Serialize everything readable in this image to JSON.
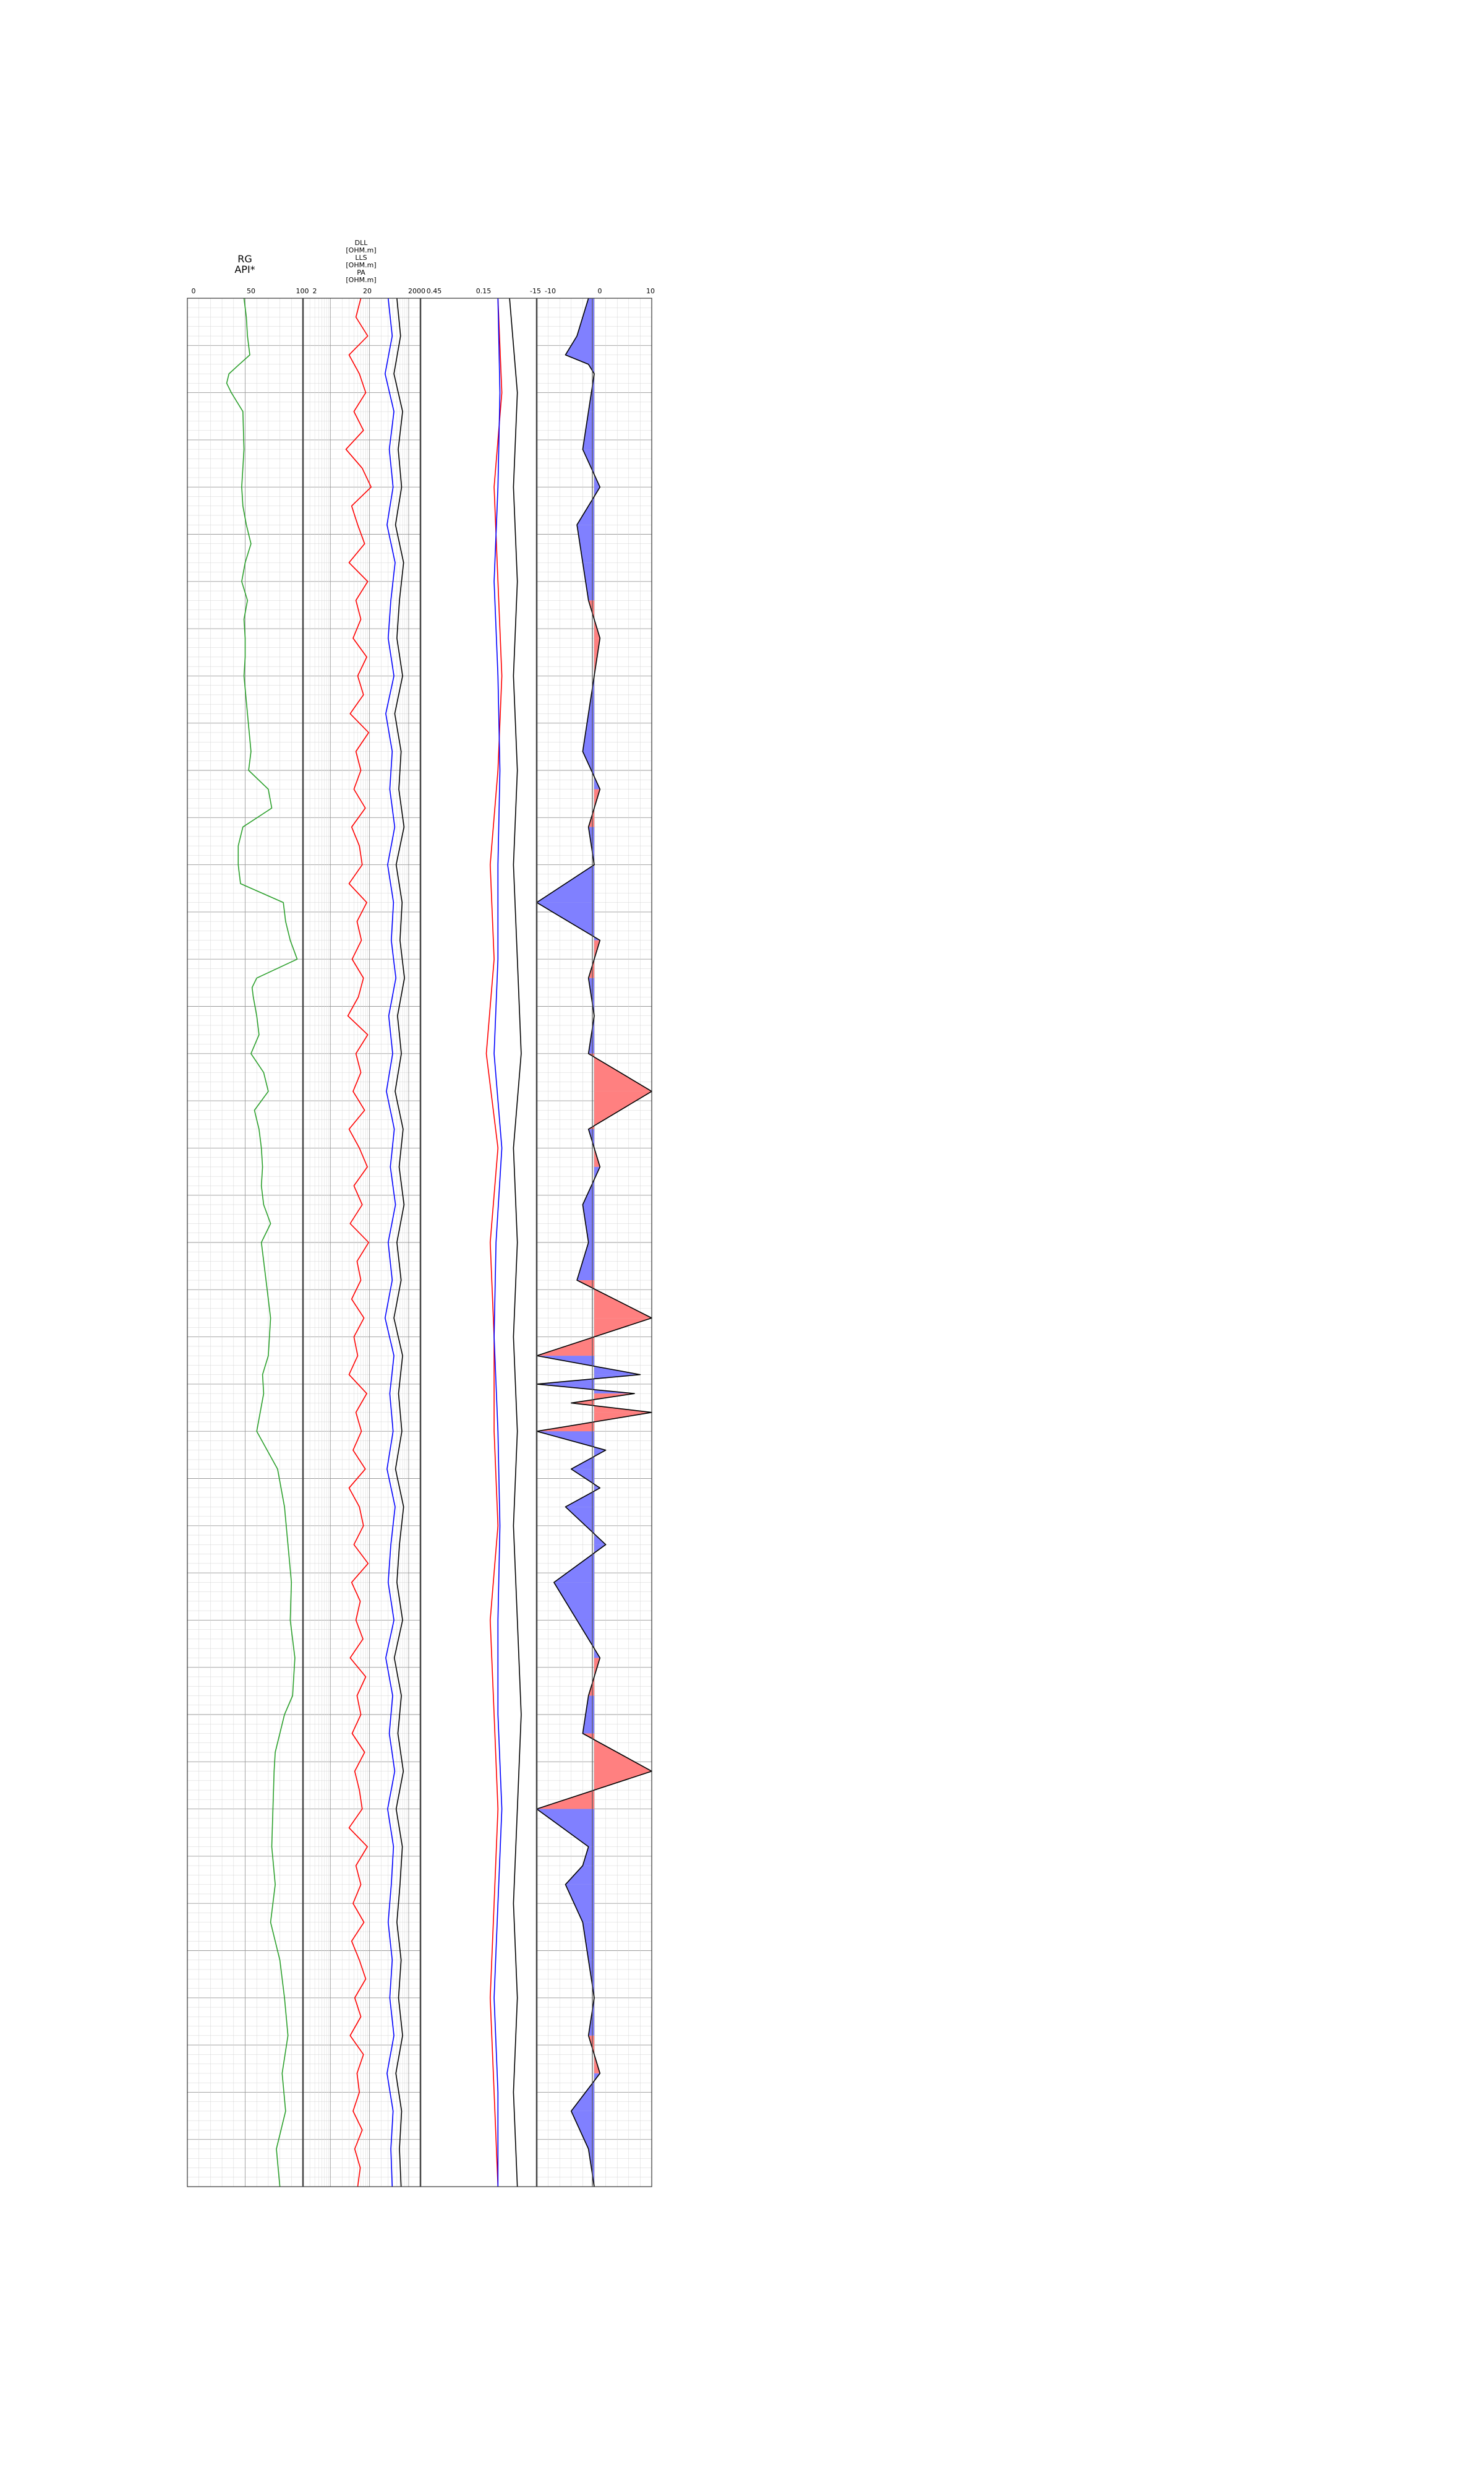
{
  "chart_data": {
    "type": "line",
    "title": "",
    "y_axis": {
      "label": "",
      "range": [
        0,
        1
      ],
      "inverted": true,
      "tick_labels": "none"
    },
    "tracks": [
      {
        "name": "gr-track",
        "x_range": [
          0,
          100
        ],
        "scale": "linear",
        "header_lines": [
          "RG",
          "API*"
        ],
        "tick_labels": [
          "0",
          "50",
          "100"
        ],
        "grid": true,
        "series": [
          {
            "color": "#2ca02c",
            "y": [
              0.0,
              0.01,
              0.02,
              0.03,
              0.035,
              0.04,
              0.045,
              0.05,
              0.06,
              0.08,
              0.1,
              0.11,
              0.12,
              0.13,
              0.14,
              0.15,
              0.16,
              0.17,
              0.18,
              0.19,
              0.2,
              0.22,
              0.24,
              0.25,
              0.26,
              0.27,
              0.28,
              0.29,
              0.3,
              0.305,
              0.31,
              0.32,
              0.33,
              0.34,
              0.35,
              0.36,
              0.365,
              0.37,
              0.38,
              0.39,
              0.4,
              0.41,
              0.42,
              0.43,
              0.44,
              0.45,
              0.46,
              0.47,
              0.48,
              0.49,
              0.5,
              0.52,
              0.54,
              0.56,
              0.57,
              0.58,
              0.59,
              0.6,
              0.62,
              0.64,
              0.66,
              0.68,
              0.7,
              0.72,
              0.74,
              0.75,
              0.76,
              0.77,
              0.78,
              0.8,
              0.82,
              0.84,
              0.86,
              0.88,
              0.9,
              0.92,
              0.94,
              0.96,
              0.98,
              1.0
            ],
            "x": [
              49,
              51,
              52,
              54,
              45,
              36,
              34,
              38,
              48,
              49,
              47,
              48,
              51,
              55,
              50,
              47,
              52,
              49,
              50,
              50,
              49,
              52,
              55,
              53,
              70,
              73,
              48,
              44,
              44,
              45,
              46,
              83,
              85,
              89,
              95,
              60,
              56,
              57,
              60,
              62,
              55,
              66,
              70,
              58,
              62,
              64,
              65,
              64,
              66,
              72,
              64,
              68,
              72,
              70,
              65,
              66,
              63,
              60,
              78,
              84,
              87,
              90,
              89,
              93,
              91,
              84,
              80,
              76,
              75,
              74,
              73,
              76,
              72,
              80,
              84,
              87,
              82,
              85,
              77,
              80
            ]
          }
        ]
      },
      {
        "name": "resistivity-track",
        "x_range": [
          2,
          2000
        ],
        "scale": "log",
        "header_lines": [
          "DLL",
          "[OHM.m]",
          "LLS",
          "[OHM.m]",
          "PA",
          "[OHM.m]"
        ],
        "tick_labels": [
          "2",
          "20",
          "2000"
        ],
        "grid": true,
        "series": [
          {
            "color": "#ff0000",
            "y": [
              0.0,
              0.01,
              0.02,
              0.03,
              0.04,
              0.05,
              0.06,
              0.07,
              0.08,
              0.09,
              0.1,
              0.11,
              0.12,
              0.13,
              0.14,
              0.15,
              0.16,
              0.17,
              0.18,
              0.19,
              0.2,
              0.21,
              0.22,
              0.23,
              0.24,
              0.25,
              0.26,
              0.27,
              0.28,
              0.29,
              0.3,
              0.31,
              0.32,
              0.33,
              0.34,
              0.35,
              0.36,
              0.37,
              0.38,
              0.39,
              0.4,
              0.41,
              0.42,
              0.43,
              0.44,
              0.45,
              0.46,
              0.47,
              0.48,
              0.49,
              0.5,
              0.51,
              0.52,
              0.53,
              0.54,
              0.55,
              0.56,
              0.57,
              0.58,
              0.59,
              0.6,
              0.61,
              0.62,
              0.63,
              0.64,
              0.65,
              0.66,
              0.67,
              0.68,
              0.69,
              0.7,
              0.71,
              0.72,
              0.73,
              0.74,
              0.75,
              0.76,
              0.77,
              0.78,
              0.79,
              0.8,
              0.81,
              0.82,
              0.83,
              0.84,
              0.85,
              0.86,
              0.87,
              0.88,
              0.89,
              0.9,
              0.91,
              0.92,
              0.93,
              0.94,
              0.95,
              0.96,
              0.97,
              0.98,
              0.99,
              1.0
            ],
            "x": [
              60,
              45,
              90,
              30,
              55,
              80,
              40,
              70,
              25,
              65,
              110,
              35,
              50,
              75,
              30,
              90,
              45,
              60,
              38,
              85,
              50,
              70,
              32,
              95,
              45,
              60,
              40,
              78,
              35,
              55,
              65,
              30,
              85,
              48,
              62,
              36,
              70,
              52,
              28,
              90,
              45,
              60,
              38,
              75,
              30,
              55,
              88,
              40,
              65,
              32,
              95,
              48,
              60,
              35,
              72,
              40,
              50,
              30,
              85,
              45,
              62,
              38,
              78,
              30,
              55,
              70,
              40,
              92,
              35,
              58,
              45,
              68,
              32,
              80,
              48,
              60,
              36,
              75,
              42,
              55,
              65,
              30,
              88,
              45,
              60,
              38,
              72,
              35,
              55,
              80,
              42,
              60,
              32,
              70,
              48,
              55,
              38,
              65,
              42,
              58,
              50
            ]
          },
          {
            "color": "#0000ff",
            "y": [
              0.0,
              0.02,
              0.04,
              0.06,
              0.08,
              0.1,
              0.12,
              0.14,
              0.16,
              0.18,
              0.2,
              0.22,
              0.24,
              0.26,
              0.28,
              0.3,
              0.32,
              0.34,
              0.36,
              0.38,
              0.4,
              0.42,
              0.44,
              0.46,
              0.48,
              0.5,
              0.52,
              0.54,
              0.56,
              0.58,
              0.6,
              0.62,
              0.64,
              0.66,
              0.68,
              0.7,
              0.72,
              0.74,
              0.76,
              0.78,
              0.8,
              0.82,
              0.84,
              0.86,
              0.88,
              0.9,
              0.92,
              0.94,
              0.96,
              0.98,
              1.0
            ],
            "x": [
              300,
              380,
              250,
              420,
              320,
              400,
              280,
              450,
              350,
              300,
              420,
              260,
              380,
              330,
              440,
              290,
              410,
              360,
              470,
              310,
              390,
              270,
              430,
              340,
              460,
              300,
              380,
              250,
              420,
              330,
              400,
              280,
              450,
              350,
              300,
              420,
              260,
              390,
              320,
              440,
              290,
              410,
              360,
              300,
              380,
              330,
              420,
              280,
              400,
              350,
              380
            ]
          },
          {
            "color": "#000000",
            "y": [
              0.0,
              0.02,
              0.04,
              0.06,
              0.08,
              0.1,
              0.12,
              0.14,
              0.16,
              0.18,
              0.2,
              0.22,
              0.24,
              0.26,
              0.28,
              0.3,
              0.32,
              0.34,
              0.36,
              0.38,
              0.4,
              0.42,
              0.44,
              0.46,
              0.48,
              0.5,
              0.52,
              0.54,
              0.56,
              0.58,
              0.6,
              0.62,
              0.64,
              0.66,
              0.68,
              0.7,
              0.72,
              0.74,
              0.76,
              0.78,
              0.8,
              0.82,
              0.84,
              0.86,
              0.88,
              0.9,
              0.92,
              0.94,
              0.96,
              0.98,
              1.0
            ],
            "x": [
              500,
              620,
              420,
              700,
              540,
              660,
              460,
              740,
              580,
              500,
              700,
              440,
              640,
              560,
              760,
              480,
              680,
              600,
              780,
              520,
              650,
              450,
              720,
              570,
              760,
              500,
              640,
              420,
              700,
              550,
              670,
              460,
              740,
              580,
              500,
              700,
              430,
              650,
              530,
              730,
              480,
              690,
              600,
              500,
              640,
              550,
              700,
              470,
              660,
              580,
              640
            ]
          }
        ]
      },
      {
        "name": "third-track",
        "x_range": [
          0.45,
          0.15
        ],
        "scale": "linear",
        "header_lines": [],
        "tick_labels": [
          "0.45",
          "0.15",
          "-15"
        ],
        "grid": false,
        "series": [
          {
            "color": "#ff0000",
            "y": [
              0.0,
              0.05,
              0.1,
              0.15,
              0.2,
              0.25,
              0.3,
              0.35,
              0.4,
              0.45,
              0.5,
              0.55,
              0.6,
              0.65,
              0.7,
              0.75,
              0.8,
              0.85,
              0.9,
              0.95,
              1.0
            ],
            "x": [
              0.25,
              0.24,
              0.26,
              0.25,
              0.24,
              0.25,
              0.27,
              0.26,
              0.28,
              0.25,
              0.27,
              0.26,
              0.26,
              0.25,
              0.27,
              0.26,
              0.25,
              0.26,
              0.27,
              0.26,
              0.25
            ]
          },
          {
            "color": "#0000ff",
            "y": [
              0.0,
              0.05,
              0.1,
              0.15,
              0.2,
              0.25,
              0.3,
              0.35,
              0.4,
              0.45,
              0.5,
              0.55,
              0.6,
              0.65,
              0.7,
              0.75,
              0.8,
              0.85,
              0.9,
              0.95,
              1.0
            ],
            "x": [
              0.25,
              0.245,
              0.25,
              0.26,
              0.25,
              0.245,
              0.25,
              0.25,
              0.26,
              0.24,
              0.255,
              0.26,
              0.25,
              0.245,
              0.25,
              0.25,
              0.24,
              0.25,
              0.26,
              0.25,
              0.25
            ]
          },
          {
            "color": "#000000",
            "y": [
              0.0,
              0.05,
              0.1,
              0.15,
              0.2,
              0.25,
              0.3,
              0.35,
              0.4,
              0.45,
              0.5,
              0.55,
              0.6,
              0.65,
              0.7,
              0.75,
              0.8,
              0.85,
              0.9,
              0.95,
              1.0
            ],
            "x": [
              0.22,
              0.2,
              0.21,
              0.2,
              0.21,
              0.2,
              0.21,
              0.2,
              0.19,
              0.21,
              0.2,
              0.21,
              0.2,
              0.21,
              0.2,
              0.19,
              0.2,
              0.21,
              0.2,
              0.21,
              0.2
            ]
          }
        ]
      },
      {
        "name": "sp-track",
        "x_range": [
          -10,
          10
        ],
        "scale": "linear",
        "header_lines": [],
        "tick_labels": [
          "-10",
          "0",
          "10"
        ],
        "grid": true,
        "fill": {
          "baseline": 0,
          "negative_color": "#8080ff",
          "positive_color": "#ff8080"
        },
        "series": [
          {
            "color": "#000000",
            "y": [
              0.0,
              0.02,
              0.03,
              0.035,
              0.04,
              0.06,
              0.08,
              0.1,
              0.12,
              0.14,
              0.16,
              0.18,
              0.2,
              0.22,
              0.24,
              0.26,
              0.28,
              0.3,
              0.32,
              0.34,
              0.36,
              0.38,
              0.4,
              0.42,
              0.44,
              0.45,
              0.46,
              0.48,
              0.5,
              0.52,
              0.54,
              0.56,
              0.57,
              0.575,
              0.58,
              0.585,
              0.59,
              0.6,
              0.61,
              0.62,
              0.63,
              0.64,
              0.66,
              0.68,
              0.7,
              0.72,
              0.74,
              0.76,
              0.78,
              0.8,
              0.82,
              0.83,
              0.84,
              0.86,
              0.88,
              0.9,
              0.92,
              0.94,
              0.96,
              0.98,
              1.0
            ],
            "x": [
              -1,
              -3,
              -5,
              -1,
              0,
              -1,
              -2,
              1,
              -3,
              -2,
              -1,
              1,
              0,
              -1,
              -2,
              1,
              -1,
              0,
              -12,
              1,
              -1,
              0,
              -1,
              10,
              -1,
              0,
              1,
              -2,
              -1,
              -3,
              10,
              -10,
              8,
              -13,
              7,
              -4,
              10,
              -10,
              2,
              -4,
              1,
              -5,
              2,
              -7,
              -3,
              1,
              -1,
              -2,
              10,
              -10,
              -1,
              -2,
              -5,
              -2,
              -1,
              0,
              -1,
              1,
              -4,
              -1,
              0
            ]
          }
        ]
      }
    ]
  }
}
